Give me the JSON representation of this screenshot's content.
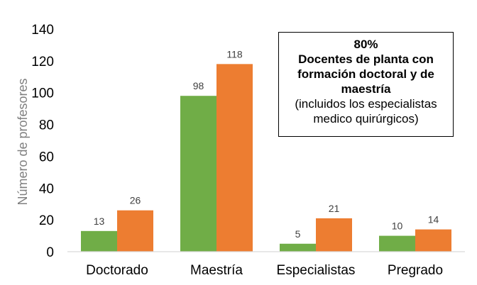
{
  "chart_data": {
    "type": "bar",
    "ylabel": "Número de profesores",
    "xlabel": "",
    "ylim": [
      0,
      140
    ],
    "yticks": [
      0,
      20,
      40,
      60,
      80,
      100,
      120,
      140
    ],
    "categories": [
      "Doctorado",
      "Maestría",
      "Especialistas",
      "Pregrado"
    ],
    "series": [
      {
        "values": [
          13,
          98,
          5,
          10
        ],
        "color": "#70ad47"
      },
      {
        "values": [
          26,
          118,
          21,
          14
        ],
        "color": "#ed7d31"
      }
    ],
    "grid": false,
    "legend": "none",
    "annotation": {
      "line1": "80%",
      "line2": "Docentes de planta con",
      "line3": "formación doctoral y de",
      "line4": "maestría",
      "line5": "(incluidos los especialistas",
      "line6": "medico quirúrgicos)"
    }
  }
}
